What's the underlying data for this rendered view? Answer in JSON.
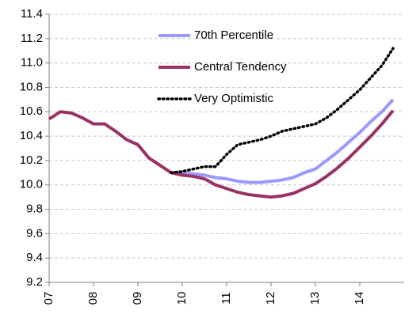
{
  "chart_data": {
    "type": "line",
    "x": [
      7,
      7.25,
      7.5,
      7.75,
      8,
      8.25,
      8.5,
      8.75,
      9,
      9.25,
      9.5,
      9.75,
      10,
      10.25,
      10.5,
      10.75,
      11,
      11.25,
      11.5,
      11.75,
      12,
      12.25,
      12.5,
      12.75,
      13,
      13.25,
      13.5,
      13.75,
      14,
      14.25,
      14.5,
      14.75
    ],
    "series": [
      {
        "name": "70th Percentile",
        "color": "#9999ff",
        "style": "solid",
        "values": [
          null,
          null,
          null,
          null,
          null,
          null,
          null,
          null,
          null,
          null,
          null,
          10.1,
          10.1,
          10.09,
          10.08,
          10.06,
          10.05,
          10.03,
          10.02,
          10.02,
          10.03,
          10.04,
          10.06,
          10.1,
          10.13,
          10.2,
          10.27,
          10.35,
          10.43,
          10.52,
          10.6,
          10.7
        ]
      },
      {
        "name": "Central Tendency",
        "color": "#993366",
        "style": "solid",
        "values": [
          10.54,
          10.6,
          10.59,
          10.55,
          10.5,
          10.5,
          10.44,
          10.37,
          10.33,
          10.22,
          10.16,
          10.1,
          10.08,
          10.07,
          10.05,
          10.0,
          9.97,
          9.94,
          9.92,
          9.91,
          9.9,
          9.91,
          9.93,
          9.97,
          10.01,
          10.07,
          10.14,
          10.22,
          10.31,
          10.4,
          10.5,
          10.61
        ]
      },
      {
        "name": "Very Optimistic",
        "color": "#000000",
        "style": "dotted",
        "values": [
          null,
          null,
          null,
          null,
          null,
          null,
          null,
          null,
          null,
          null,
          null,
          10.1,
          10.11,
          10.13,
          10.15,
          10.15,
          10.25,
          10.33,
          10.35,
          10.37,
          10.4,
          10.44,
          10.46,
          10.48,
          10.5,
          10.55,
          10.62,
          10.7,
          10.78,
          10.88,
          10.98,
          11.12
        ]
      }
    ],
    "xlim": [
      7,
      15
    ],
    "xticks": [
      {
        "value": 7,
        "label": "07"
      },
      {
        "value": 8,
        "label": "08"
      },
      {
        "value": 9,
        "label": "09"
      },
      {
        "value": 10,
        "label": "10"
      },
      {
        "value": 11,
        "label": "11"
      },
      {
        "value": 12,
        "label": "12"
      },
      {
        "value": 13,
        "label": "13"
      },
      {
        "value": 14,
        "label": "14"
      }
    ],
    "ylim": [
      9.2,
      11.4
    ],
    "yticks": [
      9.2,
      9.4,
      9.6,
      9.8,
      {
        "value": 10,
        "label": "10.0"
      },
      10.2,
      10.4,
      10.6,
      10.8,
      {
        "value": 11,
        "label": "11.0"
      },
      11.2,
      11.4
    ],
    "grid": true
  }
}
